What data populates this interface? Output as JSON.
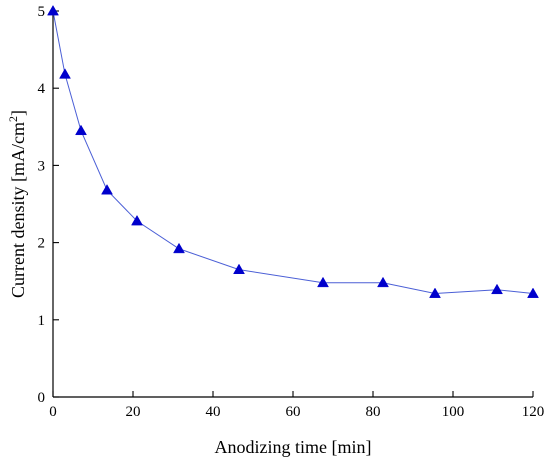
{
  "chart_data": {
    "type": "scatter",
    "xlabel": "Anodizing time [min]",
    "ylabel_main": "Current density [mA/cm",
    "ylabel_sup": "2",
    "ylabel_close": "]",
    "xlim": [
      0,
      120
    ],
    "ylim": [
      0,
      5
    ],
    "xticks": [
      0,
      20,
      40,
      60,
      80,
      100,
      120
    ],
    "yticks": [
      0,
      1,
      2,
      3,
      4,
      5
    ],
    "grid": false,
    "marker": "triangle",
    "marker_color": "#0000cc",
    "line_color": "#4b5fd6",
    "series": [
      {
        "x": [
          0,
          3,
          7,
          13.5,
          21,
          31.5,
          46.5,
          67.5,
          82.5,
          95.5,
          111,
          120
        ],
        "y": [
          5.0,
          4.18,
          3.45,
          2.68,
          2.28,
          1.92,
          1.65,
          1.48,
          1.48,
          1.34,
          1.39,
          1.34
        ]
      }
    ]
  }
}
